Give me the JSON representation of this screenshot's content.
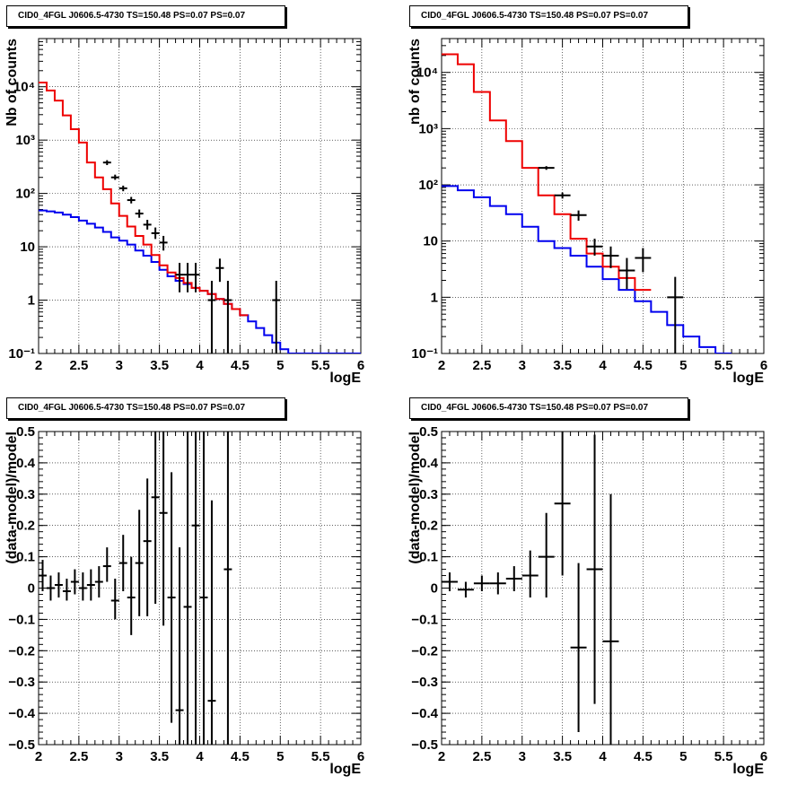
{
  "page": {
    "title": "CID0_4FGL J0606.5-4730 TS=150.48 PS=0.07 PS=0.07"
  },
  "chart_data": [
    {
      "id": "counts-left",
      "type": "line",
      "title": "CID0_4FGL J0606.5-4730 TS=150.48 PS=0.07 PS=0.07",
      "xlabel": "logE",
      "ylabel": "Nb of counts",
      "xlim": [
        2,
        6
      ],
      "ylim": [
        0.1,
        80000
      ],
      "yscale": "log",
      "grid": true,
      "xticks": [
        "2",
        "2.5",
        "3",
        "3.5",
        "4",
        "4.5",
        "5",
        "5.5",
        "6"
      ],
      "yticks": [
        {
          "v": 0.1,
          "t": "10⁻¹"
        },
        {
          "v": 1,
          "t": "1"
        },
        {
          "v": 10,
          "t": "10"
        },
        {
          "v": 100,
          "t": "10²"
        },
        {
          "v": 1000,
          "t": "10³"
        },
        {
          "v": 10000,
          "t": "10⁴"
        }
      ],
      "step_series": [
        {
          "color": "#0000ee",
          "edges_start": 2.0,
          "bin_width": 0.1,
          "values": [
            48,
            46,
            44,
            40,
            36,
            31,
            27,
            23,
            19,
            15,
            13,
            11,
            8.5,
            6.8,
            5.2,
            3.7,
            2.8,
            2.3,
            2.0,
            1.7,
            1.5,
            1.3,
            1.05,
            0.85,
            0.68,
            0.52,
            0.4,
            0.3,
            0.22,
            0.16,
            0.12,
            0.1,
            0.1,
            0.1,
            0.1,
            0.1,
            0.1,
            0.1,
            0.1,
            0.1
          ]
        },
        {
          "color": "#ee0000",
          "edges_start": 2.0,
          "bin_width": 0.1,
          "values": [
            12000,
            8500,
            5500,
            2900,
            1600,
            900,
            380,
            200,
            120,
            65,
            38,
            24,
            16,
            11,
            7,
            4.5,
            3.3,
            2.6,
            2.1,
            1.7,
            1.5,
            1.3,
            1.05,
            0.85,
            0.68,
            0.52
          ]
        }
      ],
      "points": [
        {
          "x": 2.85,
          "y": 380,
          "xerr": 0.05,
          "ylo": 340,
          "yhi": 420
        },
        {
          "x": 2.95,
          "y": 200,
          "xerr": 0.05,
          "ylo": 180,
          "yhi": 225
        },
        {
          "x": 3.05,
          "y": 125,
          "xerr": 0.05,
          "ylo": 110,
          "yhi": 140
        },
        {
          "x": 3.15,
          "y": 75,
          "xerr": 0.05,
          "ylo": 65,
          "yhi": 86
        },
        {
          "x": 3.25,
          "y": 42,
          "xerr": 0.05,
          "ylo": 35,
          "yhi": 50
        },
        {
          "x": 3.35,
          "y": 26,
          "xerr": 0.05,
          "ylo": 21,
          "yhi": 32
        },
        {
          "x": 3.45,
          "y": 18,
          "xerr": 0.05,
          "ylo": 14,
          "yhi": 23
        },
        {
          "x": 3.55,
          "y": 12,
          "xerr": 0.05,
          "ylo": 8.5,
          "yhi": 16
        },
        {
          "x": 3.75,
          "y": 3,
          "xerr": 0.05,
          "ylo": 1.4,
          "yhi": 5
        },
        {
          "x": 3.85,
          "y": 3,
          "xerr": 0.05,
          "ylo": 1.4,
          "yhi": 5
        },
        {
          "x": 3.95,
          "y": 3,
          "xerr": 0.05,
          "ylo": 1.4,
          "yhi": 5
        },
        {
          "x": 4.15,
          "y": 1,
          "xerr": 0.05,
          "ylo": 0.1,
          "yhi": 2.3
        },
        {
          "x": 4.25,
          "y": 4,
          "xerr": 0.05,
          "ylo": 2.2,
          "yhi": 6
        },
        {
          "x": 4.35,
          "y": 1,
          "xerr": 0.05,
          "ylo": 0.1,
          "yhi": 2.3
        },
        {
          "x": 4.95,
          "y": 1,
          "xerr": 0.05,
          "ylo": 0.1,
          "yhi": 2.3
        }
      ]
    },
    {
      "id": "counts-right",
      "type": "line",
      "title": "CID0_4FGL J0606.5-4730 TS=150.48 PS=0.07 PS=0.07",
      "xlabel": "logE",
      "ylabel": "nb of counts",
      "xlim": [
        2,
        6
      ],
      "ylim": [
        0.1,
        40000
      ],
      "yscale": "log",
      "grid": true,
      "xticks": [
        "2",
        "2.5",
        "3",
        "3.5",
        "4",
        "4.5",
        "5",
        "5.5",
        "6"
      ],
      "yticks": [
        {
          "v": 0.1,
          "t": "10⁻¹"
        },
        {
          "v": 1,
          "t": "1"
        },
        {
          "v": 10,
          "t": "10"
        },
        {
          "v": 100,
          "t": "10²"
        },
        {
          "v": 1000,
          "t": "10³"
        },
        {
          "v": 10000,
          "t": "10⁴"
        }
      ],
      "step_series": [
        {
          "color": "#0000ee",
          "edges_start": 2.0,
          "bin_width": 0.2,
          "values": [
            95,
            80,
            60,
            42,
            30,
            18,
            10,
            7.5,
            5.5,
            3.5,
            2.1,
            1.35,
            0.85,
            0.55,
            0.32,
            0.2,
            0.13,
            0.1
          ]
        },
        {
          "color": "#ee0000",
          "edges_start": 2.0,
          "bin_width": 0.2,
          "values": [
            21000,
            14000,
            4500,
            1400,
            600,
            200,
            65,
            30,
            11,
            6,
            3.5,
            2.2,
            1.35
          ]
        }
      ],
      "points": [
        {
          "x": 3.3,
          "y": 200,
          "xerr": 0.1,
          "ylo": 185,
          "yhi": 215
        },
        {
          "x": 3.5,
          "y": 65,
          "xerr": 0.1,
          "ylo": 57,
          "yhi": 73
        },
        {
          "x": 3.7,
          "y": 29,
          "xerr": 0.1,
          "ylo": 23,
          "yhi": 35
        },
        {
          "x": 3.9,
          "y": 8,
          "xerr": 0.1,
          "ylo": 5.5,
          "yhi": 11
        },
        {
          "x": 4.1,
          "y": 5.5,
          "xerr": 0.1,
          "ylo": 3.3,
          "yhi": 8
        },
        {
          "x": 4.3,
          "y": 3,
          "xerr": 0.1,
          "ylo": 1.4,
          "yhi": 5
        },
        {
          "x": 4.5,
          "y": 5,
          "xerr": 0.1,
          "ylo": 2.8,
          "yhi": 7.5
        },
        {
          "x": 4.9,
          "y": 1,
          "xerr": 0.1,
          "ylo": 0.1,
          "yhi": 2.3
        }
      ]
    },
    {
      "id": "resid-left",
      "type": "scatter",
      "title": "CID0_4FGL J0606.5-4730 TS=150.48 PS=0.07 PS=0.07",
      "xlabel": "logE",
      "ylabel": "(data-model)/model",
      "xlim": [
        2,
        6
      ],
      "ylim": [
        -0.5,
        0.5
      ],
      "yscale": "linear",
      "grid": true,
      "xticks": [
        "2",
        "2.5",
        "3",
        "3.5",
        "4",
        "4.5",
        "5",
        "5.5",
        "6"
      ],
      "yticks": [
        {
          "v": -0.5,
          "t": "−0.5"
        },
        {
          "v": -0.4,
          "t": "−0.4"
        },
        {
          "v": -0.3,
          "t": "−0.3"
        },
        {
          "v": -0.2,
          "t": "−0.2"
        },
        {
          "v": -0.1,
          "t": "−0.1"
        },
        {
          "v": 0,
          "t": "0"
        },
        {
          "v": 0.1,
          "t": "0.1"
        },
        {
          "v": 0.2,
          "t": "0.2"
        },
        {
          "v": 0.3,
          "t": "0.3"
        },
        {
          "v": 0.4,
          "t": "0.4"
        },
        {
          "v": 0.5,
          "t": "0.5"
        }
      ],
      "points": [
        {
          "x": 2.05,
          "y": 0.04,
          "xerr": 0.05,
          "ylo": -0.01,
          "yhi": 0.09
        },
        {
          "x": 2.15,
          "y": 0.0,
          "xerr": 0.05,
          "ylo": -0.04,
          "yhi": 0.04
        },
        {
          "x": 2.25,
          "y": 0.01,
          "xerr": 0.05,
          "ylo": -0.03,
          "yhi": 0.05
        },
        {
          "x": 2.35,
          "y": -0.01,
          "xerr": 0.05,
          "ylo": -0.04,
          "yhi": 0.03
        },
        {
          "x": 2.45,
          "y": 0.02,
          "xerr": 0.05,
          "ylo": -0.02,
          "yhi": 0.06
        },
        {
          "x": 2.55,
          "y": 0.0,
          "xerr": 0.05,
          "ylo": -0.04,
          "yhi": 0.05
        },
        {
          "x": 2.65,
          "y": 0.01,
          "xerr": 0.05,
          "ylo": -0.04,
          "yhi": 0.06
        },
        {
          "x": 2.75,
          "y": 0.02,
          "xerr": 0.05,
          "ylo": -0.03,
          "yhi": 0.07
        },
        {
          "x": 2.85,
          "y": 0.07,
          "xerr": 0.05,
          "ylo": 0.02,
          "yhi": 0.13
        },
        {
          "x": 2.95,
          "y": -0.04,
          "xerr": 0.05,
          "ylo": -0.1,
          "yhi": 0.03
        },
        {
          "x": 3.05,
          "y": 0.08,
          "xerr": 0.05,
          "ylo": -0.01,
          "yhi": 0.17
        },
        {
          "x": 3.15,
          "y": -0.03,
          "xerr": 0.05,
          "ylo": -0.15,
          "yhi": 0.1
        },
        {
          "x": 3.25,
          "y": 0.08,
          "xerr": 0.05,
          "ylo": -0.09,
          "yhi": 0.25
        },
        {
          "x": 3.35,
          "y": 0.15,
          "xerr": 0.05,
          "ylo": -0.09,
          "yhi": 0.35
        },
        {
          "x": 3.45,
          "y": 0.29,
          "xerr": 0.05,
          "ylo": -0.05,
          "yhi": 0.5
        },
        {
          "x": 3.55,
          "y": 0.24,
          "xerr": 0.05,
          "ylo": -0.12,
          "yhi": 0.5
        },
        {
          "x": 3.65,
          "y": -0.03,
          "xerr": 0.05,
          "ylo": -0.43,
          "yhi": 0.37
        },
        {
          "x": 3.75,
          "y": -0.39,
          "xerr": 0.05,
          "ylo": -0.5,
          "yhi": 0.13
        },
        {
          "x": 3.85,
          "y": -0.06,
          "xerr": 0.05,
          "ylo": -0.5,
          "yhi": 0.5
        },
        {
          "x": 3.95,
          "y": 0.2,
          "xerr": 0.05,
          "ylo": -0.5,
          "yhi": 0.5
        },
        {
          "x": 4.05,
          "y": -0.03,
          "xerr": 0.05,
          "ylo": -0.5,
          "yhi": 0.5
        },
        {
          "x": 4.15,
          "y": -0.36,
          "xerr": 0.05,
          "ylo": -0.5,
          "yhi": 0.28
        },
        {
          "x": 4.35,
          "y": 0.06,
          "xerr": 0.05,
          "ylo": -0.5,
          "yhi": 0.5
        }
      ]
    },
    {
      "id": "resid-right",
      "type": "scatter",
      "title": "CID0_4FGL J0606.5-4730 TS=150.48 PS=0.07 PS=0.07",
      "xlabel": "logE",
      "ylabel": "(data-model)/model",
      "xlim": [
        2,
        6
      ],
      "ylim": [
        -0.5,
        0.5
      ],
      "yscale": "linear",
      "grid": true,
      "xticks": [
        "2",
        "2.5",
        "3",
        "3.5",
        "4",
        "4.5",
        "5",
        "5.5",
        "6"
      ],
      "yticks": [
        {
          "v": -0.5,
          "t": "−0.5"
        },
        {
          "v": -0.4,
          "t": "−0.4"
        },
        {
          "v": -0.3,
          "t": "−0.3"
        },
        {
          "v": -0.2,
          "t": "−0.2"
        },
        {
          "v": -0.1,
          "t": "−0.1"
        },
        {
          "v": 0,
          "t": "0"
        },
        {
          "v": 0.1,
          "t": "0.1"
        },
        {
          "v": 0.2,
          "t": "0.2"
        },
        {
          "v": 0.3,
          "t": "0.3"
        },
        {
          "v": 0.4,
          "t": "0.4"
        },
        {
          "v": 0.5,
          "t": "0.5"
        }
      ],
      "points": [
        {
          "x": 2.1,
          "y": 0.02,
          "xerr": 0.1,
          "ylo": -0.01,
          "yhi": 0.05
        },
        {
          "x": 2.3,
          "y": -0.005,
          "xerr": 0.1,
          "ylo": -0.03,
          "yhi": 0.02
        },
        {
          "x": 2.5,
          "y": 0.015,
          "xerr": 0.1,
          "ylo": -0.01,
          "yhi": 0.04
        },
        {
          "x": 2.7,
          "y": 0.015,
          "xerr": 0.1,
          "ylo": -0.02,
          "yhi": 0.05
        },
        {
          "x": 2.9,
          "y": 0.03,
          "xerr": 0.1,
          "ylo": -0.01,
          "yhi": 0.07
        },
        {
          "x": 3.1,
          "y": 0.04,
          "xerr": 0.1,
          "ylo": -0.03,
          "yhi": 0.12
        },
        {
          "x": 3.3,
          "y": 0.1,
          "xerr": 0.1,
          "ylo": -0.03,
          "yhi": 0.24
        },
        {
          "x": 3.5,
          "y": 0.27,
          "xerr": 0.1,
          "ylo": 0.04,
          "yhi": 0.5
        },
        {
          "x": 3.7,
          "y": -0.19,
          "xerr": 0.1,
          "ylo": -0.46,
          "yhi": 0.08
        },
        {
          "x": 3.9,
          "y": 0.06,
          "xerr": 0.1,
          "ylo": -0.37,
          "yhi": 0.49
        },
        {
          "x": 4.1,
          "y": -0.17,
          "xerr": 0.1,
          "ylo": -0.5,
          "yhi": 0.3
        }
      ]
    }
  ]
}
